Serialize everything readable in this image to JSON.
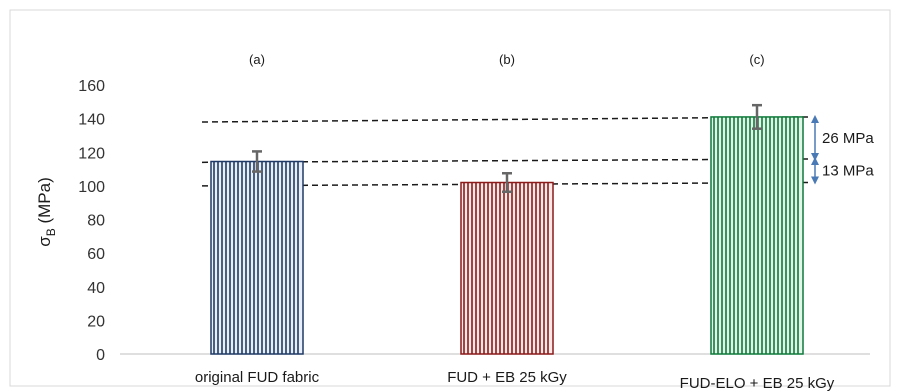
{
  "chart_data": {
    "type": "bar",
    "categories": [
      "original  FUD fabric",
      "FUD + EB 25 kGy",
      "FUD-ELO + EB 25 kGy"
    ],
    "values": [
      114.5,
      102,
      141
    ],
    "errors": [
      6,
      5.5,
      7
    ],
    "panel_labels": [
      "(a)",
      "(b)",
      "(c)"
    ],
    "ylabel": "σ",
    "ylabel_sub": "B",
    "ylabel_unit": " (MPa)",
    "ylim": [
      0,
      160
    ],
    "yticks": [
      0,
      20,
      40,
      60,
      80,
      100,
      120,
      140,
      160
    ],
    "grid": false,
    "colors": {
      "bar_stroke": [
        "#1f3a66",
        "#8b1a1a",
        "#0f7a3a"
      ],
      "bar_fill": [
        "#e8eef8",
        "#f8e8e8",
        "#e4f6ea"
      ],
      "arrow": "#4a7ab5",
      "error_bar": "#666666",
      "dashed": "#1a1a1a"
    },
    "reference_lines": [
      {
        "from_value": 138,
        "to_value": 141,
        "from_bar": 0,
        "to_bar": 2
      },
      {
        "from_value": 114,
        "to_value": 116,
        "from_bar": 0,
        "to_bar": 2
      },
      {
        "from_value": 100,
        "to_value": 102,
        "from_bar": 0,
        "to_bar": 2
      }
    ],
    "annotations": [
      {
        "label": "26 MPa",
        "from_value": 116,
        "to_value": 141
      },
      {
        "label": "13 MPa",
        "from_value": 102,
        "to_value": 116
      }
    ]
  }
}
